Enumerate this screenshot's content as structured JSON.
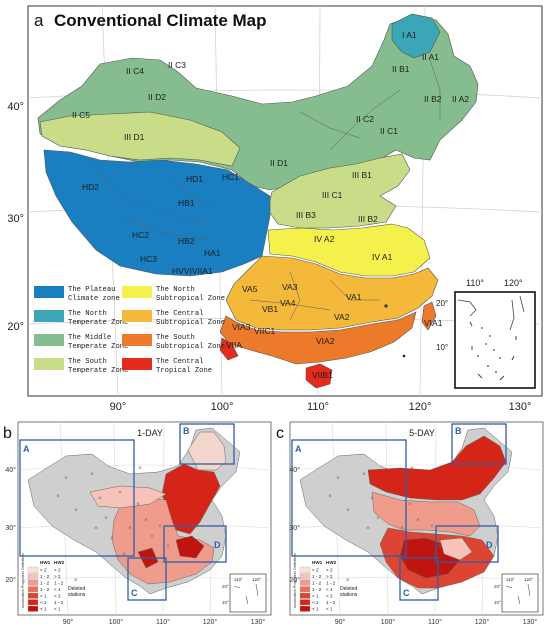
{
  "panel_a": {
    "letter": "a",
    "title": "Conventional Climate Map",
    "lat_labels": [
      "40°",
      "30°",
      "20°"
    ],
    "lon_labels": [
      "90°",
      "100°",
      "110°",
      "120°",
      "130°"
    ],
    "regions": [
      {
        "label": "I A1"
      },
      {
        "label": "II A1"
      },
      {
        "label": "II A2"
      },
      {
        "label": "II B1"
      },
      {
        "label": "II B2"
      },
      {
        "label": "II C1"
      },
      {
        "label": "II C2"
      },
      {
        "label": "II C3"
      },
      {
        "label": "II C4"
      },
      {
        "label": "II C5"
      },
      {
        "label": "II D1"
      },
      {
        "label": "II D2"
      },
      {
        "label": "III D1"
      },
      {
        "label": "III C1"
      },
      {
        "label": "III B1"
      },
      {
        "label": "III B2"
      },
      {
        "label": "III B3"
      },
      {
        "label": "HD2"
      },
      {
        "label": "HD1"
      },
      {
        "label": "HC1"
      },
      {
        "label": "HB1"
      },
      {
        "label": "HC2"
      },
      {
        "label": "HB2"
      },
      {
        "label": "HC3"
      },
      {
        "label": "HA1"
      },
      {
        "label": "HVVIVIIA1"
      },
      {
        "label": "IV A2"
      },
      {
        "label": "IV A1"
      },
      {
        "label": "VA3"
      },
      {
        "label": "VA5"
      },
      {
        "label": "VB1"
      },
      {
        "label": "VA4"
      },
      {
        "label": "VA1"
      },
      {
        "label": "VA2"
      },
      {
        "label": "VIA3"
      },
      {
        "label": "VIIC1"
      },
      {
        "label": "VIA2"
      },
      {
        "label": "VIIB1"
      },
      {
        "label": "VIA1"
      },
      {
        "label": "VIIA"
      }
    ],
    "legend": [
      {
        "label": "The Plateau\nClimate zone",
        "color": "#1a7fc1"
      },
      {
        "label": "The North\nSubtropical Zone",
        "color": "#f4f14c"
      },
      {
        "label": "The North\nTemperate Zone",
        "color": "#3ba6b5"
      },
      {
        "label": "The Central\nSubtropical Zone",
        "color": "#f4b83a"
      },
      {
        "label": "The Middle\nTemperate Zone",
        "color": "#86bd8e"
      },
      {
        "label": "The South\nSubtropical Zone",
        "color": "#ec7a2a"
      },
      {
        "label": "The South\nTemperate Zone",
        "color": "#c9dd88"
      },
      {
        "label": "The Central\nTropical Zone",
        "color": "#e62b1d"
      }
    ],
    "inset_lon": [
      "110°",
      "120°"
    ],
    "inset_lat": [
      "20°",
      "10°"
    ]
  },
  "panel_b": {
    "letter": "b",
    "title": "1-DAY",
    "boxes": [
      "A",
      "B",
      "C",
      "D"
    ],
    "lat_labels": [
      "40°",
      "30°",
      "20°"
    ],
    "lon_labels": [
      "90°",
      "100°",
      "110°",
      "120°",
      "130°"
    ],
    "legend_headers": [
      "HW1",
      "HW2"
    ],
    "legend_side": "Anomalies  Propotion  Definition",
    "legend_rows": [
      {
        "hw1": "> 2",
        "hw2": "> 2",
        "color": "#fbe1dc"
      },
      {
        "hw1": "1 - 2",
        "hw2": "> 2",
        "color": "#f7c3b8"
      },
      {
        "hw1": "1 - 2",
        "hw2": "1 - 2",
        "color": "#f09c8c"
      },
      {
        "hw1": "1 - 2",
        "hw2": "< 1",
        "color": "#e8705e"
      },
      {
        "hw1": "< 1",
        "hw2": "> 2",
        "color": "#de4432"
      },
      {
        "hw1": "< 1",
        "hw2": "1 - 2",
        "color": "#d42518"
      },
      {
        "hw1": "< 1",
        "hw2": "< 1",
        "color": "#c0150f"
      }
    ],
    "deleted_label": "Deleted\nstations",
    "inset_lon": [
      "110°",
      "120°"
    ],
    "inset_lat": [
      "20°",
      "10°"
    ]
  },
  "panel_c": {
    "letter": "c",
    "title": "5-DAY",
    "boxes": [
      "A",
      "B",
      "C",
      "D"
    ],
    "lat_labels": [
      "40°",
      "30°",
      "20°"
    ],
    "lon_labels": [
      "90°",
      "100°",
      "110°",
      "120°",
      "130°"
    ],
    "legend_headers": [
      "HW1",
      "HW2"
    ],
    "legend_side": "Anomalies  Propotion  Definition",
    "legend_rows": [
      {
        "hw1": "> 2",
        "hw2": "> 2",
        "color": "#fbe1dc"
      },
      {
        "hw1": "1 - 2",
        "hw2": "> 2",
        "color": "#f7c3b8"
      },
      {
        "hw1": "1 - 2",
        "hw2": "1 - 2",
        "color": "#f09c8c"
      },
      {
        "hw1": "1 - 2",
        "hw2": "< 1",
        "color": "#e8705e"
      },
      {
        "hw1": "< 1",
        "hw2": "> 2",
        "color": "#de4432"
      },
      {
        "hw1": "< 1",
        "hw2": "1 - 2",
        "color": "#d42518"
      },
      {
        "hw1": "< 1",
        "hw2": "< 1",
        "color": "#c0150f"
      }
    ],
    "deleted_label": "Deleted\nstations",
    "inset_lon": [
      "110°",
      "120°"
    ],
    "inset_lat": [
      "20°",
      "10°"
    ]
  }
}
